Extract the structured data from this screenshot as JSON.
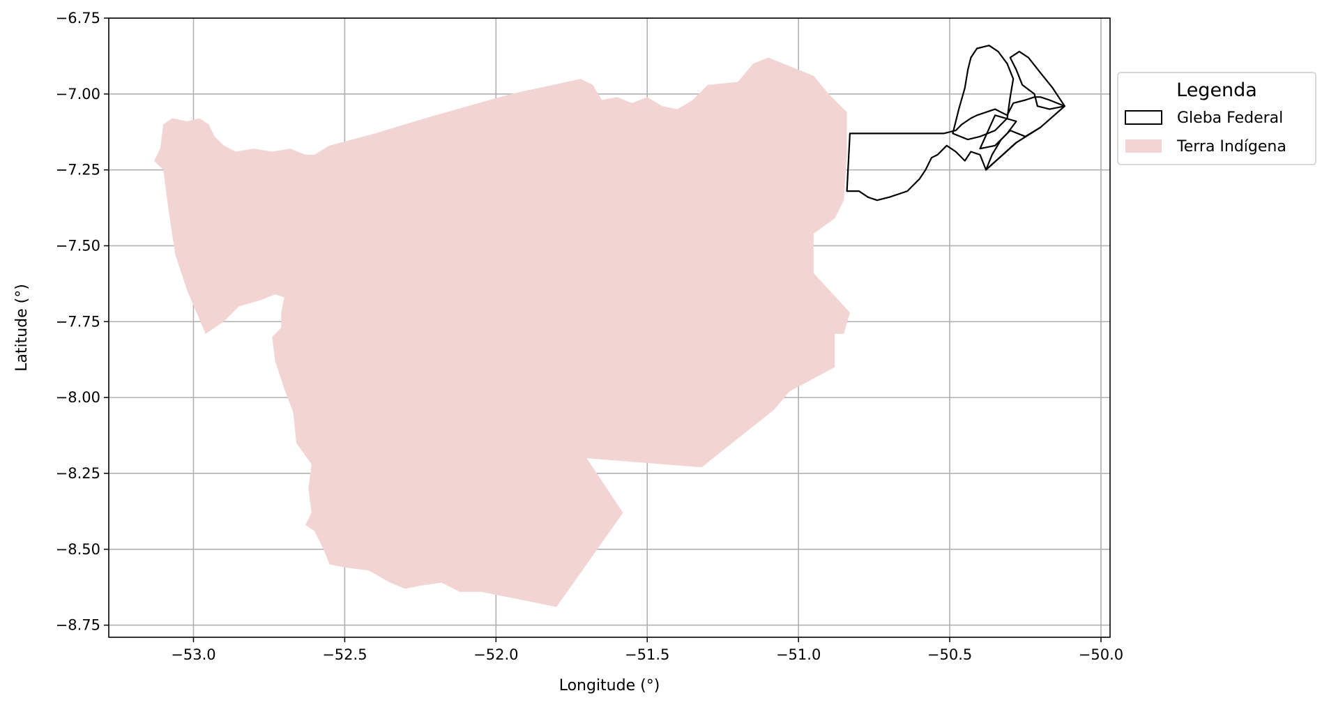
{
  "chart_data": {
    "type": "map",
    "xlabel": "Longitude (°)",
    "ylabel": "Latitude (°)",
    "xlim": [
      -53.28,
      -49.97
    ],
    "ylim": [
      -8.79,
      -6.75
    ],
    "x_ticks": [
      -53.0,
      -52.5,
      -52.0,
      -51.5,
      -51.0,
      -50.5,
      -50.0
    ],
    "x_tick_labels": [
      "−53.0",
      "−52.5",
      "−52.0",
      "−51.5",
      "−51.0",
      "−50.5",
      "−50.0"
    ],
    "y_ticks": [
      -6.75,
      -7.0,
      -7.25,
      -7.5,
      -7.75,
      -8.0,
      -8.25,
      -8.5,
      -8.75
    ],
    "y_tick_labels": [
      "−6.75",
      "−7.00",
      "−7.25",
      "−7.50",
      "−7.75",
      "−8.00",
      "−8.25",
      "−8.50",
      "−8.75"
    ],
    "grid": true,
    "legend": {
      "title": "Legenda",
      "position": "outside-right-top",
      "entries": [
        {
          "label": "Gleba Federal",
          "style": "outline",
          "edge_color": "#000000"
        },
        {
          "label": "Terra Indígena",
          "style": "fill",
          "fill_color": "#f2d4d3"
        }
      ]
    },
    "layers": [
      {
        "name": "Terra Indígena",
        "color": "#f2d4d3",
        "polygons": [
          [
            [
              -53.13,
              -7.22
            ],
            [
              -53.11,
              -7.18
            ],
            [
              -53.1,
              -7.1
            ],
            [
              -53.07,
              -7.08
            ],
            [
              -53.02,
              -7.09
            ],
            [
              -52.98,
              -7.08
            ],
            [
              -52.95,
              -7.1
            ],
            [
              -52.93,
              -7.14
            ],
            [
              -52.9,
              -7.17
            ],
            [
              -52.86,
              -7.19
            ],
            [
              -52.8,
              -7.18
            ],
            [
              -52.74,
              -7.19
            ],
            [
              -52.68,
              -7.18
            ],
            [
              -52.63,
              -7.2
            ],
            [
              -52.6,
              -7.2
            ],
            [
              -52.55,
              -7.17
            ],
            [
              -52.4,
              -7.13
            ],
            [
              -52.2,
              -7.07
            ],
            [
              -51.95,
              -7.0
            ],
            [
              -51.72,
              -6.95
            ],
            [
              -51.68,
              -6.97
            ],
            [
              -51.65,
              -7.02
            ],
            [
              -51.6,
              -7.01
            ],
            [
              -51.55,
              -7.03
            ],
            [
              -51.5,
              -7.01
            ],
            [
              -51.45,
              -7.04
            ],
            [
              -51.4,
              -7.05
            ],
            [
              -51.35,
              -7.02
            ],
            [
              -51.3,
              -6.97
            ],
            [
              -51.2,
              -6.96
            ],
            [
              -51.15,
              -6.9
            ],
            [
              -51.1,
              -6.88
            ],
            [
              -51.05,
              -6.9
            ],
            [
              -51.0,
              -6.92
            ],
            [
              -50.95,
              -6.94
            ],
            [
              -50.9,
              -7.0
            ],
            [
              -50.84,
              -7.06
            ],
            [
              -50.84,
              -7.1
            ],
            [
              -50.84,
              -7.2
            ],
            [
              -50.85,
              -7.35
            ],
            [
              -50.88,
              -7.41
            ],
            [
              -50.95,
              -7.46
            ],
            [
              -50.95,
              -7.59
            ],
            [
              -50.83,
              -7.72
            ],
            [
              -50.85,
              -7.79
            ],
            [
              -50.88,
              -7.79
            ],
            [
              -50.88,
              -7.9
            ],
            [
              -51.03,
              -7.98
            ],
            [
              -51.08,
              -8.04
            ],
            [
              -51.32,
              -8.23
            ],
            [
              -51.7,
              -8.2
            ],
            [
              -51.58,
              -8.38
            ],
            [
              -51.8,
              -8.69
            ],
            [
              -51.85,
              -8.68
            ],
            [
              -51.95,
              -8.66
            ],
            [
              -52.05,
              -8.64
            ],
            [
              -52.12,
              -8.64
            ],
            [
              -52.18,
              -8.61
            ],
            [
              -52.25,
              -8.62
            ],
            [
              -52.3,
              -8.63
            ],
            [
              -52.35,
              -8.61
            ],
            [
              -52.42,
              -8.57
            ],
            [
              -52.5,
              -8.56
            ],
            [
              -52.55,
              -8.55
            ],
            [
              -52.57,
              -8.5
            ],
            [
              -52.6,
              -8.44
            ],
            [
              -52.63,
              -8.42
            ],
            [
              -52.61,
              -8.38
            ],
            [
              -52.62,
              -8.3
            ],
            [
              -52.61,
              -8.22
            ],
            [
              -52.66,
              -8.15
            ],
            [
              -52.67,
              -8.05
            ],
            [
              -52.7,
              -7.97
            ],
            [
              -52.73,
              -7.88
            ],
            [
              -52.74,
              -7.8
            ],
            [
              -52.71,
              -7.77
            ],
            [
              -52.71,
              -7.72
            ],
            [
              -52.7,
              -7.67
            ],
            [
              -52.73,
              -7.66
            ],
            [
              -52.78,
              -7.68
            ],
            [
              -52.85,
              -7.7
            ],
            [
              -52.9,
              -7.75
            ],
            [
              -52.96,
              -7.79
            ],
            [
              -53.02,
              -7.65
            ],
            [
              -53.06,
              -7.53
            ],
            [
              -53.08,
              -7.4
            ],
            [
              -53.1,
              -7.25
            ]
          ]
        ]
      },
      {
        "name": "Gleba Federal",
        "edge_color": "#000000",
        "polygons": [
          [
            [
              -50.83,
              -7.13
            ],
            [
              -50.52,
              -7.13
            ],
            [
              -50.48,
              -7.12
            ],
            [
              -50.46,
              -7.1
            ],
            [
              -50.43,
              -7.08
            ],
            [
              -50.41,
              -7.07
            ],
            [
              -50.38,
              -7.06
            ],
            [
              -50.35,
              -7.05
            ],
            [
              -50.31,
              -7.07
            ],
            [
              -50.29,
              -7.03
            ],
            [
              -50.25,
              -7.02
            ],
            [
              -50.22,
              -7.01
            ],
            [
              -50.2,
              -7.01
            ],
            [
              -50.17,
              -7.02
            ],
            [
              -50.12,
              -7.04
            ],
            [
              -50.2,
              -7.11
            ],
            [
              -50.28,
              -7.16
            ],
            [
              -50.38,
              -7.25
            ],
            [
              -50.4,
              -7.2
            ],
            [
              -50.43,
              -7.19
            ],
            [
              -50.45,
              -7.22
            ],
            [
              -50.48,
              -7.19
            ],
            [
              -50.51,
              -7.17
            ],
            [
              -50.54,
              -7.2
            ],
            [
              -50.56,
              -7.21
            ],
            [
              -50.58,
              -7.25
            ],
            [
              -50.6,
              -7.28
            ],
            [
              -50.62,
              -7.3
            ],
            [
              -50.64,
              -7.32
            ],
            [
              -50.67,
              -7.33
            ],
            [
              -50.7,
              -7.34
            ],
            [
              -50.74,
              -7.35
            ],
            [
              -50.77,
              -7.34
            ],
            [
              -50.8,
              -7.32
            ],
            [
              -50.84,
              -7.32
            ]
          ],
          [
            [
              -50.49,
              -7.13
            ],
            [
              -50.47,
              -7.05
            ],
            [
              -50.45,
              -6.98
            ],
            [
              -50.44,
              -6.92
            ],
            [
              -50.43,
              -6.88
            ],
            [
              -50.41,
              -6.85
            ],
            [
              -50.37,
              -6.84
            ],
            [
              -50.34,
              -6.86
            ],
            [
              -50.31,
              -6.9
            ],
            [
              -50.29,
              -6.95
            ],
            [
              -50.3,
              -7.01
            ],
            [
              -50.31,
              -7.08
            ],
            [
              -50.35,
              -7.12
            ],
            [
              -50.4,
              -7.14
            ],
            [
              -50.44,
              -7.15
            ]
          ],
          [
            [
              -50.3,
              -6.88
            ],
            [
              -50.27,
              -6.86
            ],
            [
              -50.24,
              -6.88
            ],
            [
              -50.2,
              -6.93
            ],
            [
              -50.16,
              -6.98
            ],
            [
              -50.12,
              -7.04
            ],
            [
              -50.17,
              -7.05
            ],
            [
              -50.21,
              -7.04
            ],
            [
              -50.22,
              -7.0
            ],
            [
              -50.26,
              -6.97
            ],
            [
              -50.28,
              -6.92
            ]
          ],
          [
            [
              -50.4,
              -7.18
            ],
            [
              -50.35,
              -7.07
            ],
            [
              -50.28,
              -7.09
            ],
            [
              -50.31,
              -7.13
            ],
            [
              -50.35,
              -7.17
            ]
          ],
          [
            [
              -50.38,
              -7.25
            ],
            [
              -50.36,
              -7.2
            ],
            [
              -50.33,
              -7.15
            ],
            [
              -50.3,
              -7.12
            ],
            [
              -50.25,
              -7.14
            ],
            [
              -50.2,
              -7.11
            ],
            [
              -50.28,
              -7.16
            ]
          ]
        ]
      }
    ]
  }
}
